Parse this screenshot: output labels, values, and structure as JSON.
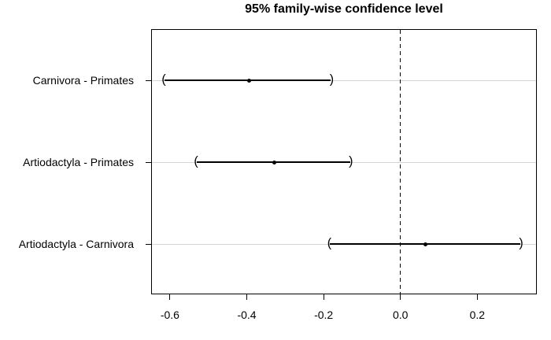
{
  "title": "95% family-wise confidence level",
  "chart_data": {
    "type": "scatter",
    "subtype": "tukey-hsd-confidence-intervals",
    "title": "95% family-wise confidence level",
    "xlabel": "",
    "ylabel": "",
    "categories": [
      "Carnivora - Primates",
      "Artiodactyla - Primates",
      "Artiodactyla - Carnivora"
    ],
    "intervals": [
      {
        "label": "Carnivora - Primates",
        "lower": -0.616,
        "center": -0.394,
        "upper": -0.179
      },
      {
        "label": "Artiodactyla - Primates",
        "lower": -0.532,
        "center": -0.328,
        "upper": -0.129
      },
      {
        "label": "Artiodactyla - Carnivora",
        "lower": -0.185,
        "center": 0.066,
        "upper": 0.314
      }
    ],
    "x_ticks": [
      -0.6,
      -0.4,
      -0.2,
      0.0,
      0.2
    ],
    "x_tick_labels": [
      "-0.6",
      "-0.4",
      "-0.2",
      "0.0",
      "0.2"
    ],
    "xlim": [
      -0.649,
      0.355
    ],
    "reference_line_x": 0,
    "grid": false,
    "legend": "none",
    "endpoint_glyphs": [
      "(",
      ")"
    ],
    "colors": {
      "interval": "#000000",
      "row_line": "#d4d4d4",
      "reference_line": "#000000",
      "text": "#000000",
      "background": "#ffffff"
    }
  }
}
